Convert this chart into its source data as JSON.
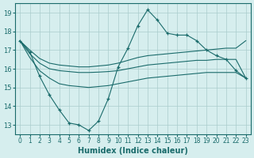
{
  "x": [
    0,
    1,
    2,
    3,
    4,
    5,
    6,
    7,
    8,
    9,
    10,
    11,
    12,
    13,
    14,
    15,
    16,
    17,
    18,
    19,
    20,
    21,
    22,
    23
  ],
  "main_line": [
    17.5,
    16.9,
    15.6,
    14.6,
    13.8,
    13.1,
    13.0,
    12.7,
    13.2,
    14.4,
    16.1,
    17.1,
    18.3,
    19.15,
    18.6,
    17.9,
    17.8,
    17.8,
    17.5,
    17.0,
    16.7,
    16.5,
    15.9,
    15.5
  ],
  "upper_line": [
    17.5,
    17.0,
    16.55,
    16.3,
    16.2,
    16.15,
    16.1,
    16.1,
    16.15,
    16.2,
    16.3,
    16.45,
    16.6,
    16.7,
    16.75,
    16.8,
    16.85,
    16.9,
    16.95,
    17.0,
    17.05,
    17.1,
    17.1,
    17.5
  ],
  "mid_line": [
    17.5,
    16.8,
    16.3,
    16.0,
    15.9,
    15.85,
    15.8,
    15.8,
    15.82,
    15.85,
    15.9,
    16.0,
    16.1,
    16.2,
    16.25,
    16.3,
    16.35,
    16.4,
    16.45,
    16.45,
    16.5,
    16.5,
    16.5,
    15.5
  ],
  "lower_line": [
    17.5,
    16.6,
    15.9,
    15.5,
    15.2,
    15.1,
    15.05,
    15.0,
    15.05,
    15.1,
    15.2,
    15.3,
    15.4,
    15.5,
    15.55,
    15.6,
    15.65,
    15.7,
    15.75,
    15.8,
    15.8,
    15.8,
    15.8,
    15.5
  ],
  "bg_color": "#d6eeee",
  "grid_color": "#aacccc",
  "line_color": "#1a6b6b",
  "xlabel": "Humidex (Indice chaleur)",
  "xlim": [
    -0.5,
    23.5
  ],
  "ylim": [
    12.5,
    19.5
  ],
  "yticks": [
    13,
    14,
    15,
    16,
    17,
    18,
    19
  ],
  "xticks": [
    0,
    1,
    2,
    3,
    4,
    5,
    6,
    7,
    8,
    9,
    10,
    11,
    12,
    13,
    14,
    15,
    16,
    17,
    18,
    19,
    20,
    21,
    22,
    23
  ]
}
